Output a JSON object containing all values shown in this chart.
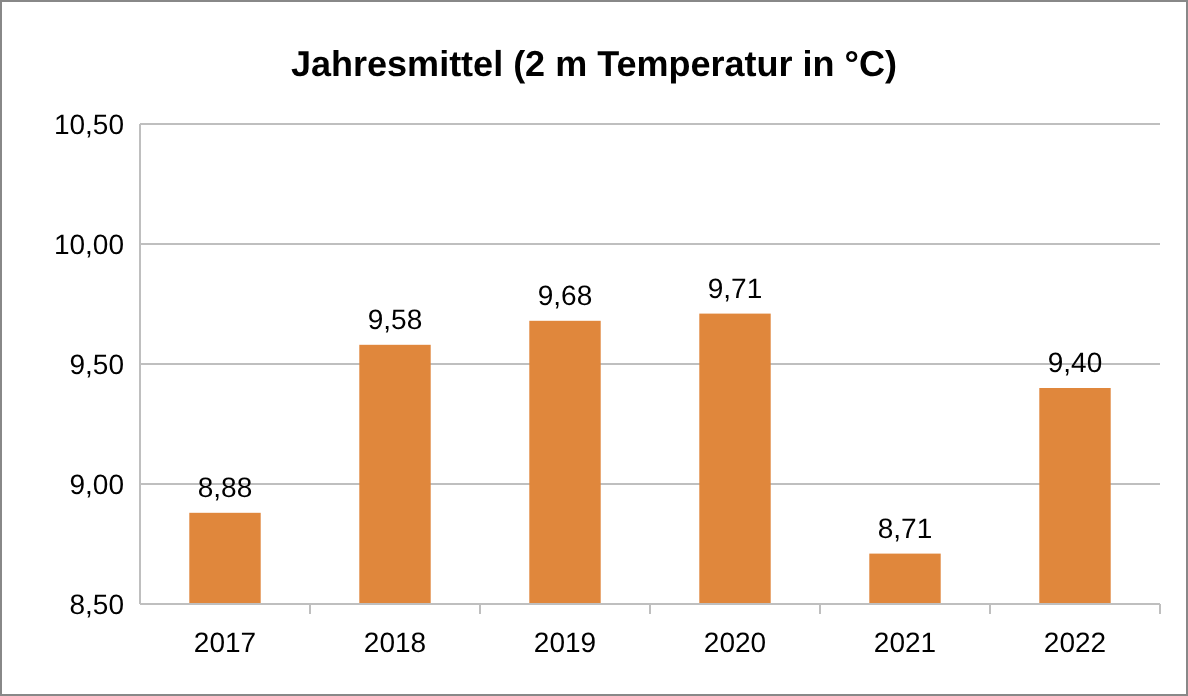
{
  "chart_data": {
    "type": "bar",
    "title": "Jahresmittel (2 m Temperatur in °C)",
    "categories": [
      "2017",
      "2018",
      "2019",
      "2020",
      "2021",
      "2022"
    ],
    "values": [
      8.88,
      9.58,
      9.68,
      9.71,
      8.71,
      9.4
    ],
    "value_labels": [
      "8,88",
      "9,58",
      "9,68",
      "9,71",
      "8,71",
      "9,40"
    ],
    "color": "#e0873c",
    "ylim": [
      8.5,
      10.5
    ],
    "yticks": [
      {
        "value": 8.5,
        "label": "8,50"
      },
      {
        "value": 9,
        "label": "9,00"
      },
      {
        "value": 9.5,
        "label": "9,50"
      },
      {
        "value": 10,
        "label": "10,00"
      },
      {
        "value": 10.5,
        "label": "10,50"
      }
    ],
    "grid": "y"
  }
}
